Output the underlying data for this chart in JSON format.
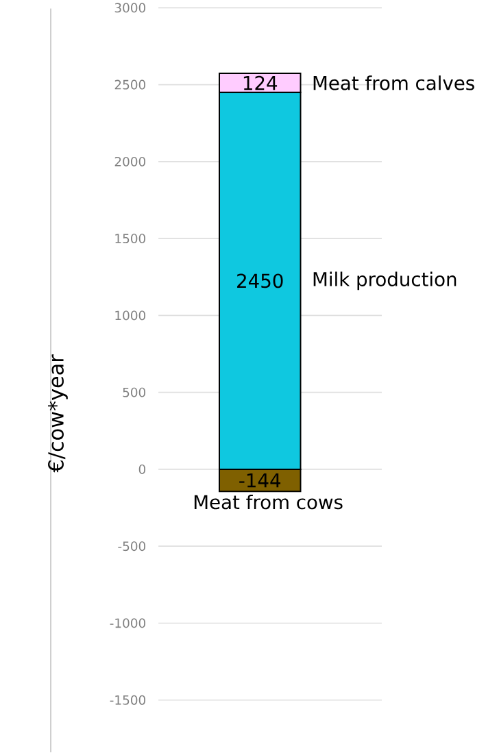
{
  "chart_data": {
    "type": "bar",
    "stacked": true,
    "ylabel": "€/cow*year",
    "categories": [
      null
    ],
    "series": [
      {
        "name": "Milk production",
        "color": "#0fc8e0",
        "values": [
          2450
        ]
      },
      {
        "name": "Meat from calves",
        "color": "#ffccff",
        "values": [
          124
        ]
      },
      {
        "name": "Meat from cows",
        "color": "#7f6000",
        "values": [
          -144
        ]
      }
    ],
    "ylim": [
      -1500,
      3000
    ],
    "yticks": [
      -1500,
      -1000,
      -500,
      0,
      500,
      1000,
      1500,
      2000,
      2500,
      3000
    ],
    "grid": "y",
    "data_labels": true,
    "legend": false
  }
}
